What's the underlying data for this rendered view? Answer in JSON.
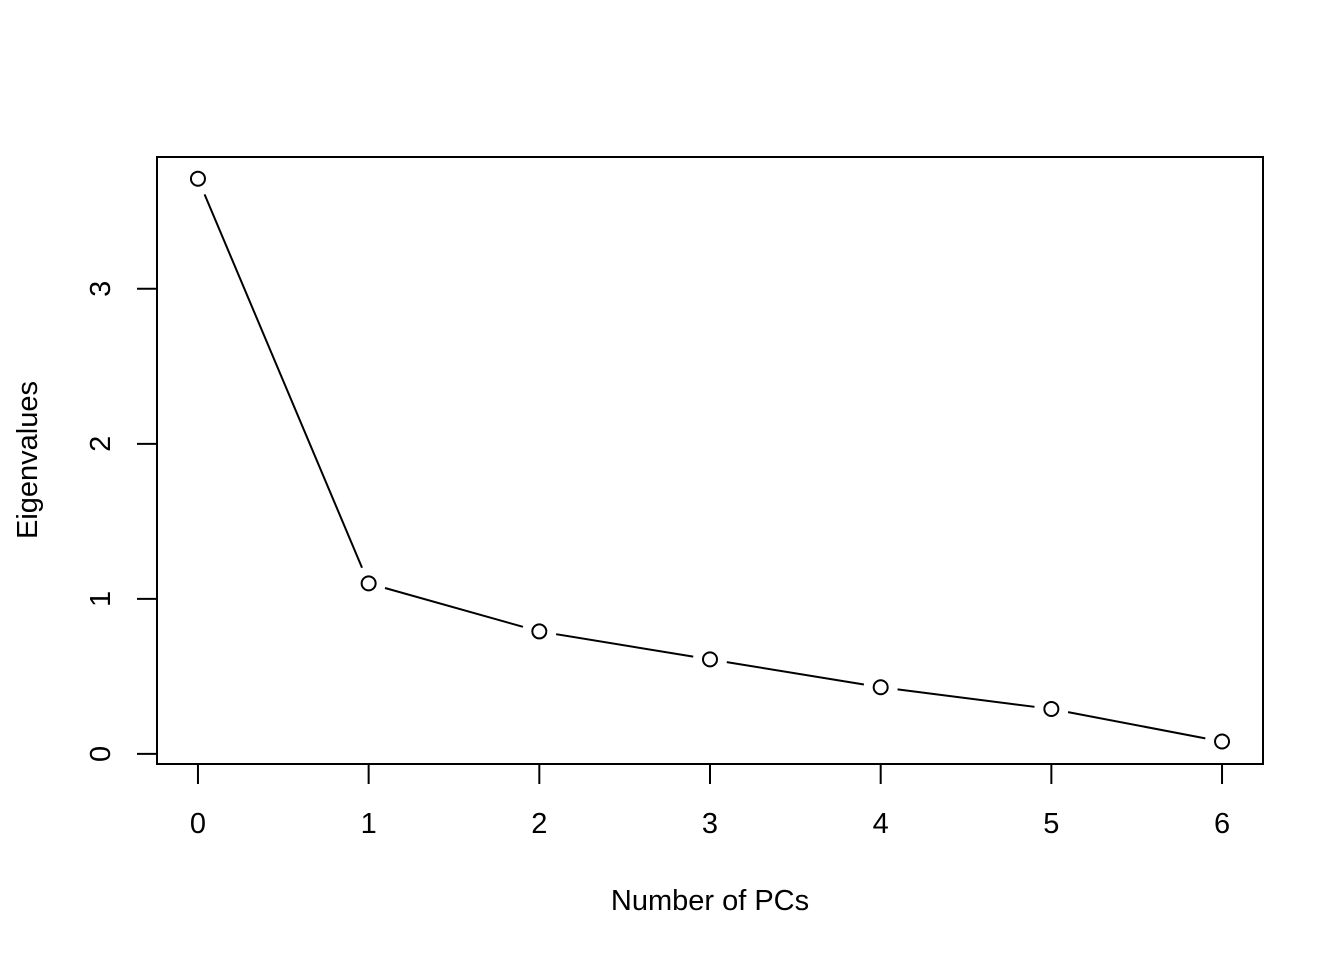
{
  "chart_data": {
    "type": "line",
    "title": "",
    "xlabel": "Number of PCs",
    "ylabel": "Eigenvalues",
    "x": [
      0,
      1,
      2,
      3,
      4,
      5,
      6
    ],
    "series": [
      {
        "values": [
          3.71,
          1.1,
          0.79,
          0.61,
          0.43,
          0.29,
          0.08
        ]
      }
    ],
    "xlim": [
      -0.24,
      6.24
    ],
    "ylim": [
      -0.065,
      3.85
    ],
    "xticks": [
      "0",
      "1",
      "2",
      "3",
      "4",
      "5",
      "6"
    ],
    "yticks": [
      "0",
      "1",
      "2",
      "3"
    ],
    "grid": false,
    "markers": "open-circle",
    "line_color": "#000000"
  }
}
